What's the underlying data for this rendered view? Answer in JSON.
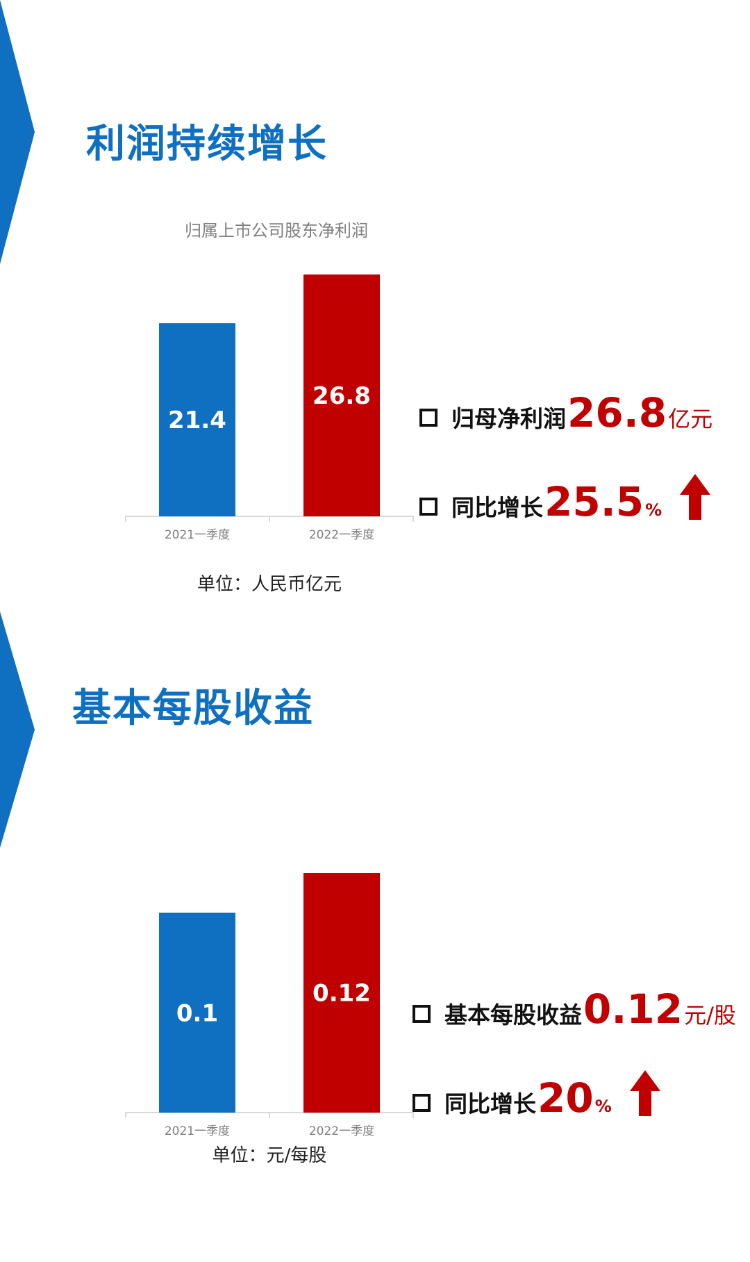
{
  "colors": {
    "accent_blue": "#0f6fc0",
    "accent_red": "#c00000",
    "bar_2021": "#0f6fc0",
    "bar_2022": "#c00000",
    "axis_grey": "#d9d9d9",
    "tick_grey": "#7f7f7f"
  },
  "sections": [
    {
      "title": "利润持续增长",
      "unit_note": "单位：人民币亿元",
      "kpis": [
        {
          "label": "归母净利润",
          "value": "26.8",
          "unit": "亿元",
          "icon": ""
        },
        {
          "label": "同比增长",
          "value": "25.5",
          "unit": "%",
          "icon": "up-arrow-icon"
        }
      ]
    },
    {
      "title": "基本每股收益",
      "unit_note": "单位：元/每股",
      "kpis": [
        {
          "label": "基本每股收益",
          "value": "0.12",
          "unit": "元/股",
          "icon": ""
        },
        {
          "label": "同比增长",
          "value": "20",
          "unit": "%",
          "icon": "up-arrow-icon"
        }
      ]
    }
  ],
  "chart_data": [
    {
      "type": "bar",
      "title": "归属上市公司股东净利润",
      "categories": [
        "2021一季度",
        "2022一季度"
      ],
      "values": [
        21.4,
        26.8
      ],
      "value_labels": [
        "21.4",
        "26.8"
      ],
      "bar_colors": [
        "#0f6fc0",
        "#c00000"
      ],
      "ylim": [
        0,
        26.8
      ],
      "grid": false,
      "legend": "none"
    },
    {
      "type": "bar",
      "title": "",
      "categories": [
        "2021一季度",
        "2022一季度"
      ],
      "values": [
        0.1,
        0.12
      ],
      "value_labels": [
        "0.1",
        "0.12"
      ],
      "bar_colors": [
        "#0f6fc0",
        "#c00000"
      ],
      "ylim": [
        0,
        0.12
      ],
      "grid": false,
      "legend": "none"
    }
  ]
}
